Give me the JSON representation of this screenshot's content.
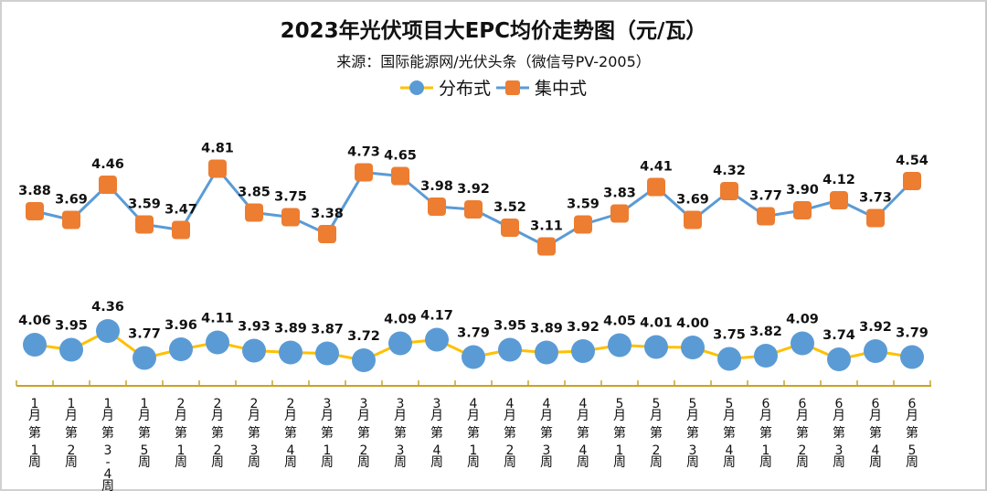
{
  "chart_data": {
    "type": "line",
    "title": "2023年光伏项目大EPC均价走势图（元/瓦）",
    "subtitle": "来源：国际能源网/光伏头条（微信号PV-2005）",
    "xlabel": "",
    "ylabel": "",
    "unit": "元/瓦",
    "legend_position": "top-center",
    "grid": false,
    "categories": [
      "1月第1周",
      "1月第2周",
      "1月第3-4周",
      "1月第5周",
      "2月第1周",
      "2月第2周",
      "2月第3周",
      "2月第4周",
      "3月第1周",
      "3月第2周",
      "3月第3周",
      "3月第4周",
      "4月第1周",
      "4月第2周",
      "4月第3周",
      "4月第4周",
      "5月第1周",
      "5月第2周",
      "5月第3周",
      "5月第4周",
      "6月第1周",
      "6月第2周",
      "6月第3周",
      "6月第4周",
      "6月第5周"
    ],
    "series": [
      {
        "name": "分布式",
        "marker": "circle",
        "marker_color": "#5B9BD5",
        "line_color": "#FFC000",
        "values": [
          4.06,
          3.95,
          4.36,
          3.77,
          3.96,
          4.11,
          3.93,
          3.89,
          3.87,
          3.72,
          4.09,
          4.17,
          3.79,
          3.95,
          3.89,
          3.92,
          4.05,
          4.01,
          4.0,
          3.75,
          3.82,
          4.09,
          3.74,
          3.92,
          3.79
        ]
      },
      {
        "name": "集中式",
        "marker": "rounded-square",
        "marker_color": "#ED7D31",
        "line_color": "#5B9BD5",
        "values": [
          3.88,
          3.69,
          4.46,
          3.59,
          3.47,
          4.81,
          3.85,
          3.75,
          3.38,
          4.73,
          4.65,
          3.98,
          3.92,
          3.52,
          3.11,
          3.59,
          3.83,
          4.41,
          3.69,
          4.32,
          3.77,
          3.9,
          4.12,
          3.73,
          4.54
        ]
      }
    ],
    "axis_color": "#C9A227"
  }
}
